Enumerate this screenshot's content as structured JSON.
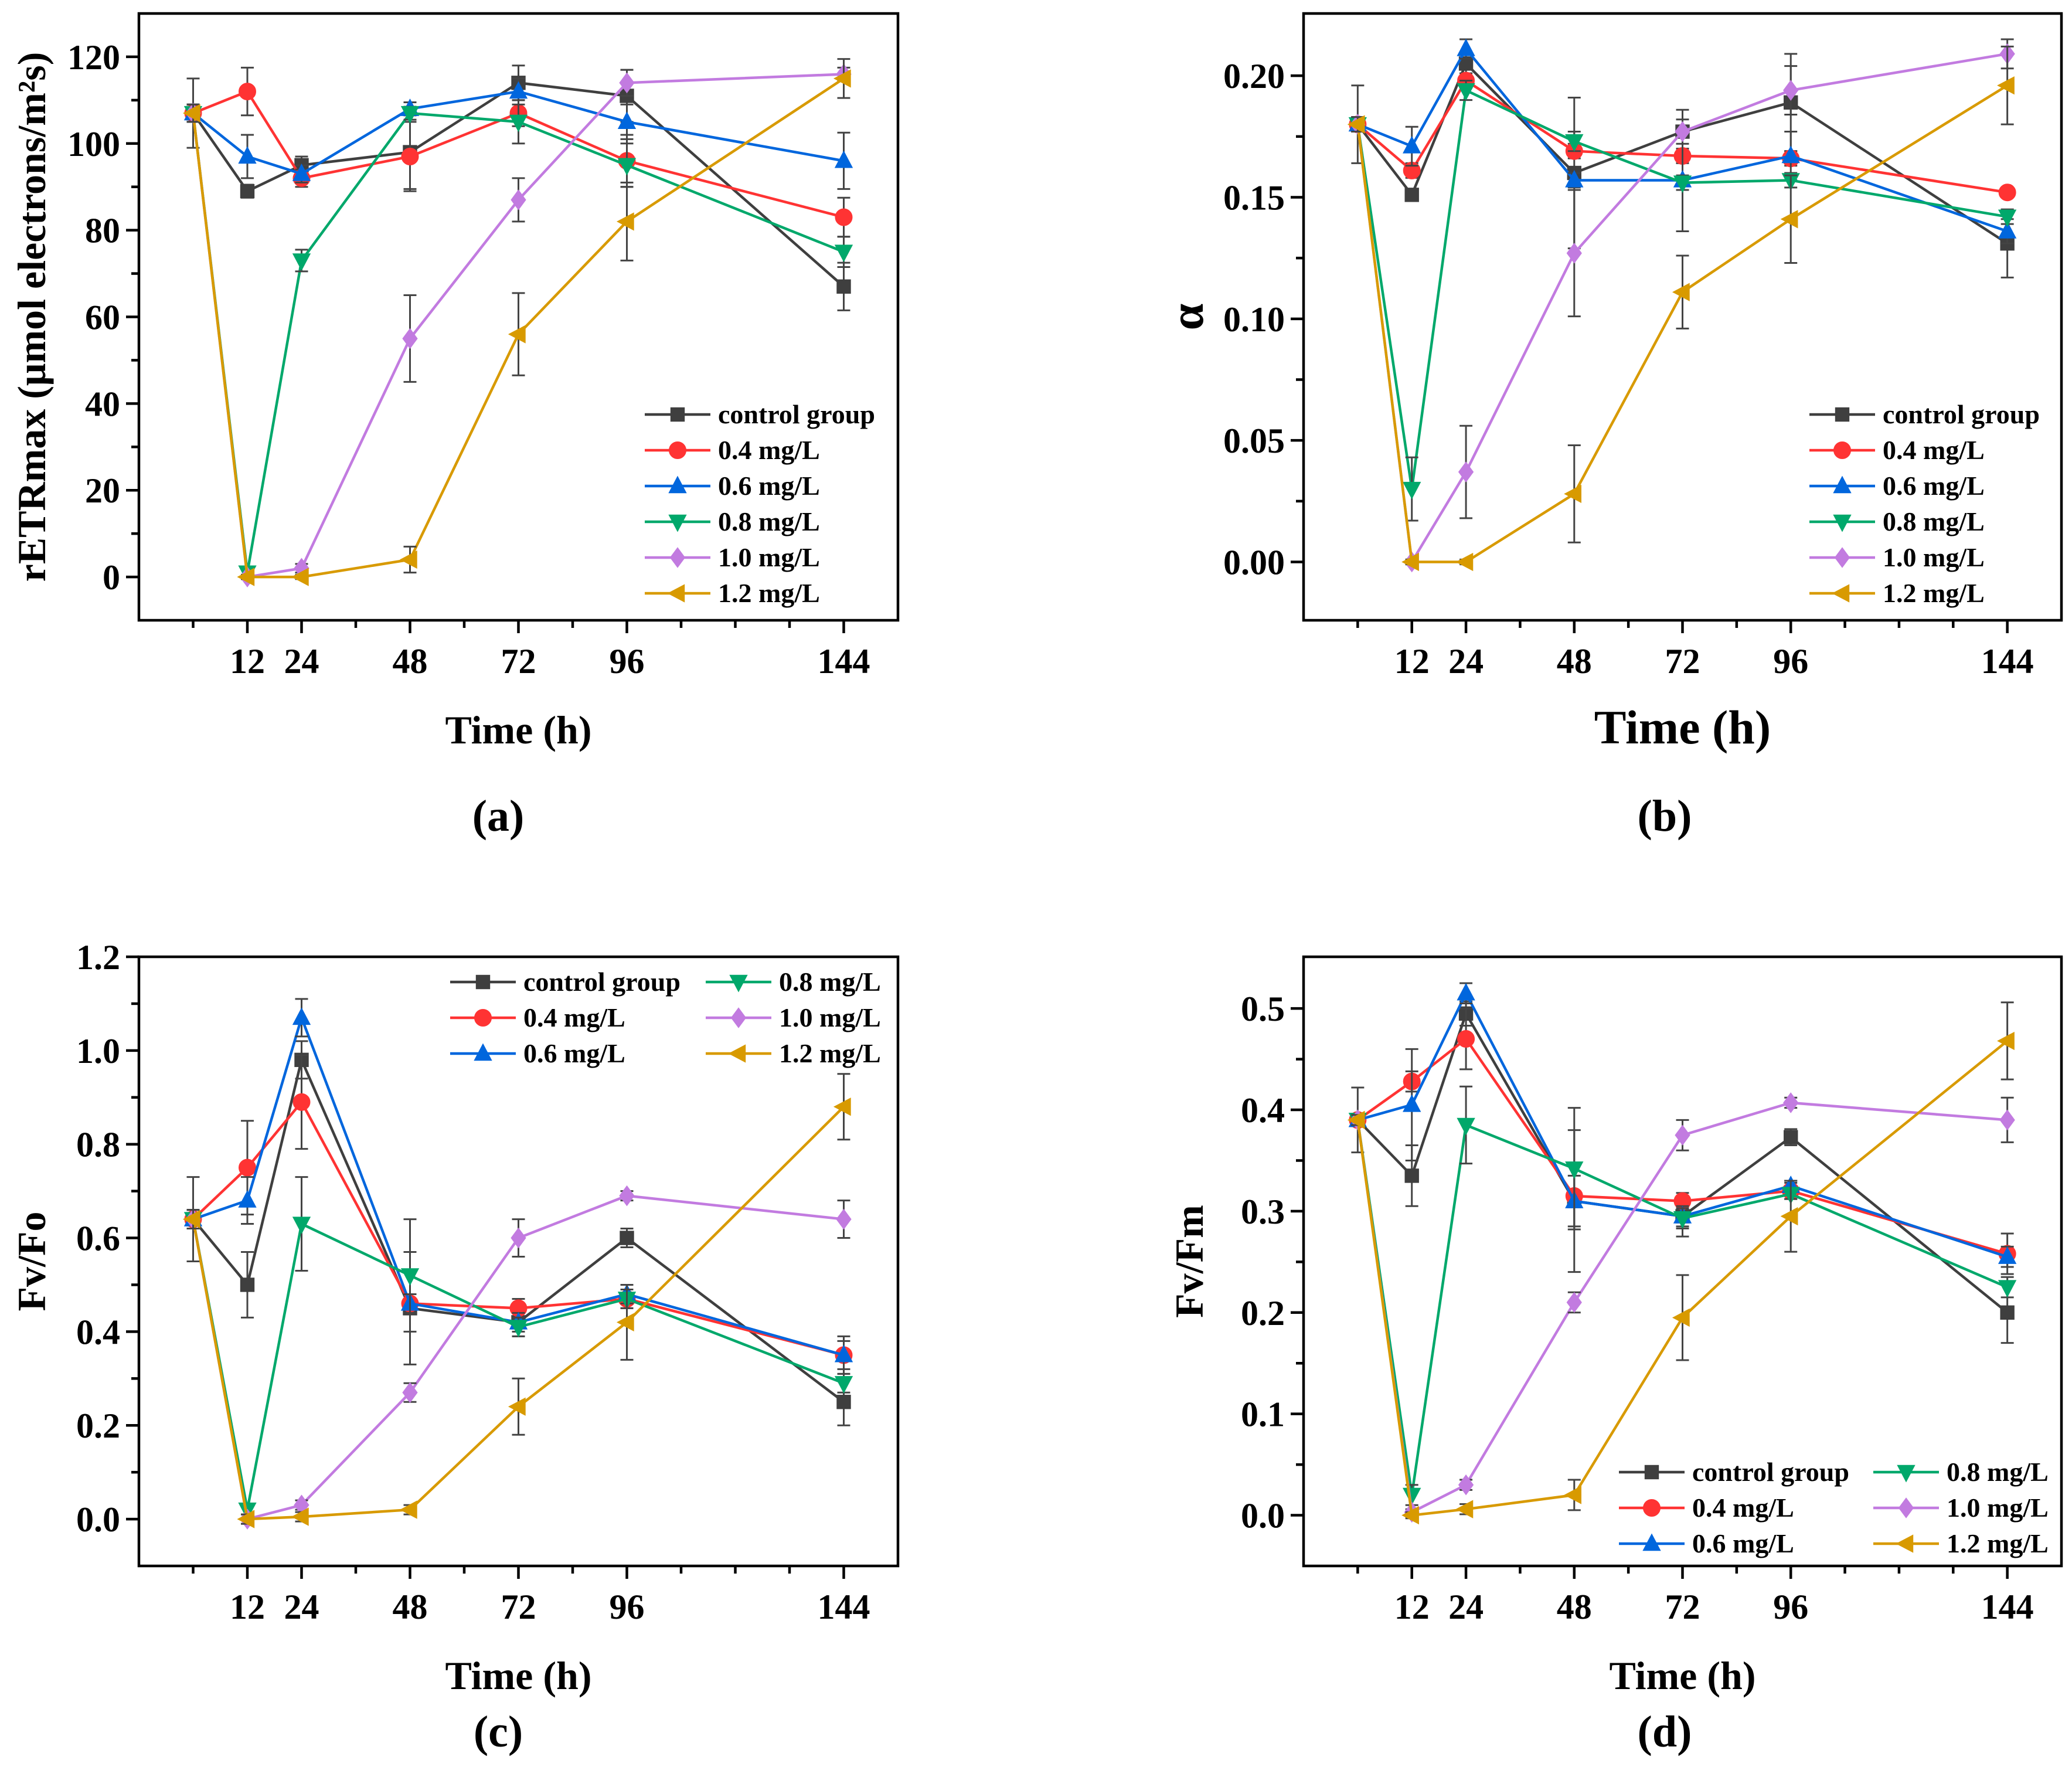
{
  "chart_data": [
    {
      "type": "line",
      "panel_label": "(a)",
      "xlabel": "Time (h)",
      "ylabel": "rETRmax (μmol electrons/m²s)",
      "x": [
        0,
        12,
        24,
        48,
        72,
        96,
        144
      ],
      "xticks": [
        12,
        24,
        48,
        72,
        96,
        144
      ],
      "xlim": [
        -12,
        156
      ],
      "yticks": [
        0,
        20,
        40,
        60,
        80,
        100,
        120
      ],
      "ylim": [
        -10,
        130
      ],
      "legend": "bottom-right",
      "series": [
        {
          "name": "control group",
          "values": [
            107,
            89,
            95,
            98,
            114,
            111,
            67
          ],
          "err": [
            8,
            1.5,
            2,
            8.5,
            4,
            6,
            5.5
          ]
        },
        {
          "name": "0.4 mg/L",
          "values": [
            107,
            112,
            92,
            97,
            107,
            96,
            83
          ],
          "err": [
            2,
            5.5,
            2,
            8,
            3,
            6,
            4.5
          ]
        },
        {
          "name": "0.6 mg/L",
          "values": [
            107,
            97,
            93,
            108,
            112,
            105,
            96
          ],
          "err": [
            2,
            5,
            2,
            1.5,
            3,
            4,
            6.5
          ]
        },
        {
          "name": "0.8 mg/L",
          "values": [
            107,
            1,
            73,
            107,
            105,
            95,
            75
          ],
          "err": [
            2,
            1,
            2.5,
            1.5,
            5,
            5,
            3.5
          ]
        },
        {
          "name": "1.0 mg/L",
          "values": [
            107,
            0,
            2,
            55,
            87,
            114,
            116
          ],
          "err": [
            2,
            0.5,
            1,
            10,
            5,
            3,
            1.5
          ]
        },
        {
          "name": "1.2 mg/L",
          "values": [
            107,
            0,
            0,
            4,
            56,
            82,
            115
          ],
          "err": [
            2,
            0.5,
            0.5,
            3,
            9.5,
            9,
            4.5
          ]
        }
      ]
    },
    {
      "type": "line",
      "panel_label": "(b)",
      "xlabel": "Time (h)",
      "ylabel": "α",
      "x": [
        0,
        12,
        24,
        48,
        72,
        96,
        144
      ],
      "xticks": [
        12,
        24,
        48,
        72,
        96,
        144
      ],
      "xlim": [
        -12,
        156
      ],
      "yticks": [
        0.0,
        0.05,
        0.1,
        0.15,
        0.2
      ],
      "ytick_labels": [
        "0.00",
        "0.05",
        "0.10",
        "0.15",
        "0.20"
      ],
      "ylim": [
        -0.024,
        0.2256
      ],
      "legend": "bottom-right",
      "series": [
        {
          "name": "control group",
          "values": [
            0.18,
            0.151,
            0.205,
            0.16,
            0.177,
            0.189,
            0.131
          ],
          "err": [
            0.016,
            0.002,
            0.004,
            0.031,
            0.009,
            0.02,
            0.014
          ]
        },
        {
          "name": "0.4 mg/L",
          "values": [
            0.18,
            0.161,
            0.198,
            0.169,
            0.167,
            0.166,
            0.152
          ],
          "err": [
            0.003,
            0.003,
            0.003,
            0.003,
            0.003,
            0.003,
            0.002
          ]
        },
        {
          "name": "0.6 mg/L",
          "values": [
            0.18,
            0.171,
            0.211,
            0.157,
            0.157,
            0.167,
            0.136
          ],
          "err": [
            0.003,
            0.008,
            0.004,
            0.003,
            0.021,
            0.01,
            0.005
          ]
        },
        {
          "name": "0.8 mg/L",
          "values": [
            0.18,
            0.03,
            0.194,
            0.173,
            0.156,
            0.157,
            0.142
          ],
          "err": [
            0.003,
            0.013,
            0.004,
            0.004,
            0.003,
            0.003,
            0.003
          ]
        },
        {
          "name": "1.0 mg/L",
          "values": [
            0.18,
            0.0,
            0.037,
            0.127,
            0.177,
            0.194,
            0.209
          ],
          "err": [
            0.003,
            0.001,
            0.019,
            0.026,
            0.005,
            0.01,
            0.006
          ]
        },
        {
          "name": "1.2 mg/L",
          "values": [
            0.18,
            0.0,
            0.0,
            0.028,
            0.111,
            0.141,
            0.196
          ],
          "err": [
            0.003,
            0.001,
            0.001,
            0.02,
            0.015,
            0.018,
            0.016
          ]
        }
      ]
    },
    {
      "type": "line",
      "panel_label": "(c)",
      "xlabel": "Time (h)",
      "ylabel": "Fv/Fo",
      "x": [
        0,
        12,
        24,
        48,
        72,
        96,
        144
      ],
      "xticks": [
        12,
        24,
        48,
        72,
        96,
        144
      ],
      "xlim": [
        -12,
        156
      ],
      "yticks": [
        0.0,
        0.2,
        0.4,
        0.6,
        0.8,
        1.0,
        1.2
      ],
      "ytick_labels": [
        "0.0",
        "0.2",
        "0.4",
        "0.6",
        "0.8",
        "1.0",
        "1.2"
      ],
      "ylim": [
        -0.1,
        1.2
      ],
      "legend": "top-right",
      "series": [
        {
          "name": "control group",
          "values": [
            0.64,
            0.5,
            0.98,
            0.45,
            0.42,
            0.6,
            0.25
          ],
          "err": [
            0.09,
            0.07,
            0.04,
            0.12,
            0.03,
            0.02,
            0.05
          ]
        },
        {
          "name": "0.4 mg/L",
          "values": [
            0.64,
            0.75,
            0.89,
            0.46,
            0.45,
            0.47,
            0.35
          ],
          "err": [
            0.02,
            0.1,
            0.1,
            0.02,
            0.02,
            0.02,
            0.04
          ]
        },
        {
          "name": "0.6 mg/L",
          "values": [
            0.64,
            0.68,
            1.07,
            0.46,
            0.42,
            0.48,
            0.35
          ],
          "err": [
            0.02,
            0.05,
            0.04,
            0.02,
            0.02,
            0.02,
            0.03
          ]
        },
        {
          "name": "0.8 mg/L",
          "values": [
            0.64,
            0.02,
            0.63,
            0.52,
            0.41,
            0.47,
            0.29
          ],
          "err": [
            0.02,
            0.01,
            0.1,
            0.12,
            0.02,
            0.02,
            0.02
          ]
        },
        {
          "name": "1.0 mg/L",
          "values": [
            0.64,
            0.0,
            0.03,
            0.27,
            0.6,
            0.69,
            0.64
          ],
          "err": [
            0.02,
            0.01,
            0.01,
            0.02,
            0.04,
            0.01,
            0.04
          ]
        },
        {
          "name": "1.2 mg/L",
          "values": [
            0.64,
            0.0,
            0.005,
            0.02,
            0.24,
            0.42,
            0.88
          ],
          "err": [
            0.02,
            0.01,
            0.01,
            0.01,
            0.06,
            0.08,
            0.07
          ]
        }
      ]
    },
    {
      "type": "line",
      "panel_label": "(d)",
      "xlabel": "Time (h)",
      "ylabel": "Fv/Fm",
      "x": [
        0,
        12,
        24,
        48,
        72,
        96,
        144
      ],
      "xticks": [
        12,
        24,
        48,
        72,
        96,
        144
      ],
      "xlim": [
        -12,
        156
      ],
      "yticks": [
        0.0,
        0.1,
        0.2,
        0.3,
        0.4,
        0.5
      ],
      "ytick_labels": [
        "0.0",
        "0.1",
        "0.2",
        "0.3",
        "0.4",
        "0.5"
      ],
      "ylim": [
        -0.05,
        0.551
      ],
      "legend": "bottom-right",
      "series": [
        {
          "name": "control group",
          "values": [
            0.39,
            0.335,
            0.495,
            0.31,
            0.295,
            0.373,
            0.2
          ],
          "err": [
            0.032,
            0.03,
            0.012,
            0.025,
            0.02,
            0.008,
            0.03
          ]
        },
        {
          "name": "0.4 mg/L",
          "values": [
            0.39,
            0.428,
            0.47,
            0.315,
            0.31,
            0.32,
            0.258
          ],
          "err": [
            0.005,
            0.01,
            0.03,
            0.005,
            0.008,
            0.008,
            0.02
          ]
        },
        {
          "name": "0.6 mg/L",
          "values": [
            0.39,
            0.405,
            0.515,
            0.31,
            0.295,
            0.325,
            0.255
          ],
          "err": [
            0.005,
            0.055,
            0.01,
            0.07,
            0.01,
            0.005,
            0.01
          ]
        },
        {
          "name": "0.8 mg/L",
          "values": [
            0.39,
            0.02,
            0.385,
            0.342,
            0.293,
            0.317,
            0.225
          ],
          "err": [
            0.005,
            0.01,
            0.038,
            0.06,
            0.01,
            0.005,
            0.01
          ]
        },
        {
          "name": "1.0 mg/L",
          "values": [
            0.39,
            0.003,
            0.03,
            0.21,
            0.375,
            0.407,
            0.39
          ],
          "err": [
            0.005,
            0.003,
            0.005,
            0.01,
            0.015,
            0.005,
            0.022
          ]
        },
        {
          "name": "1.2 mg/L",
          "values": [
            0.39,
            0.0,
            0.006,
            0.02,
            0.195,
            0.295,
            0.468
          ],
          "err": [
            0.005,
            0.003,
            0.005,
            0.015,
            0.042,
            0.035,
            0.038
          ]
        }
      ]
    }
  ],
  "series_colors": [
    "#3f3f3f",
    "#ff3333",
    "#0066dd",
    "#00a86b",
    "#c27be0",
    "#d89a00"
  ],
  "series_markers": [
    "square",
    "circle",
    "triangle-up",
    "triangle-down",
    "diamond",
    "triangle-left"
  ]
}
